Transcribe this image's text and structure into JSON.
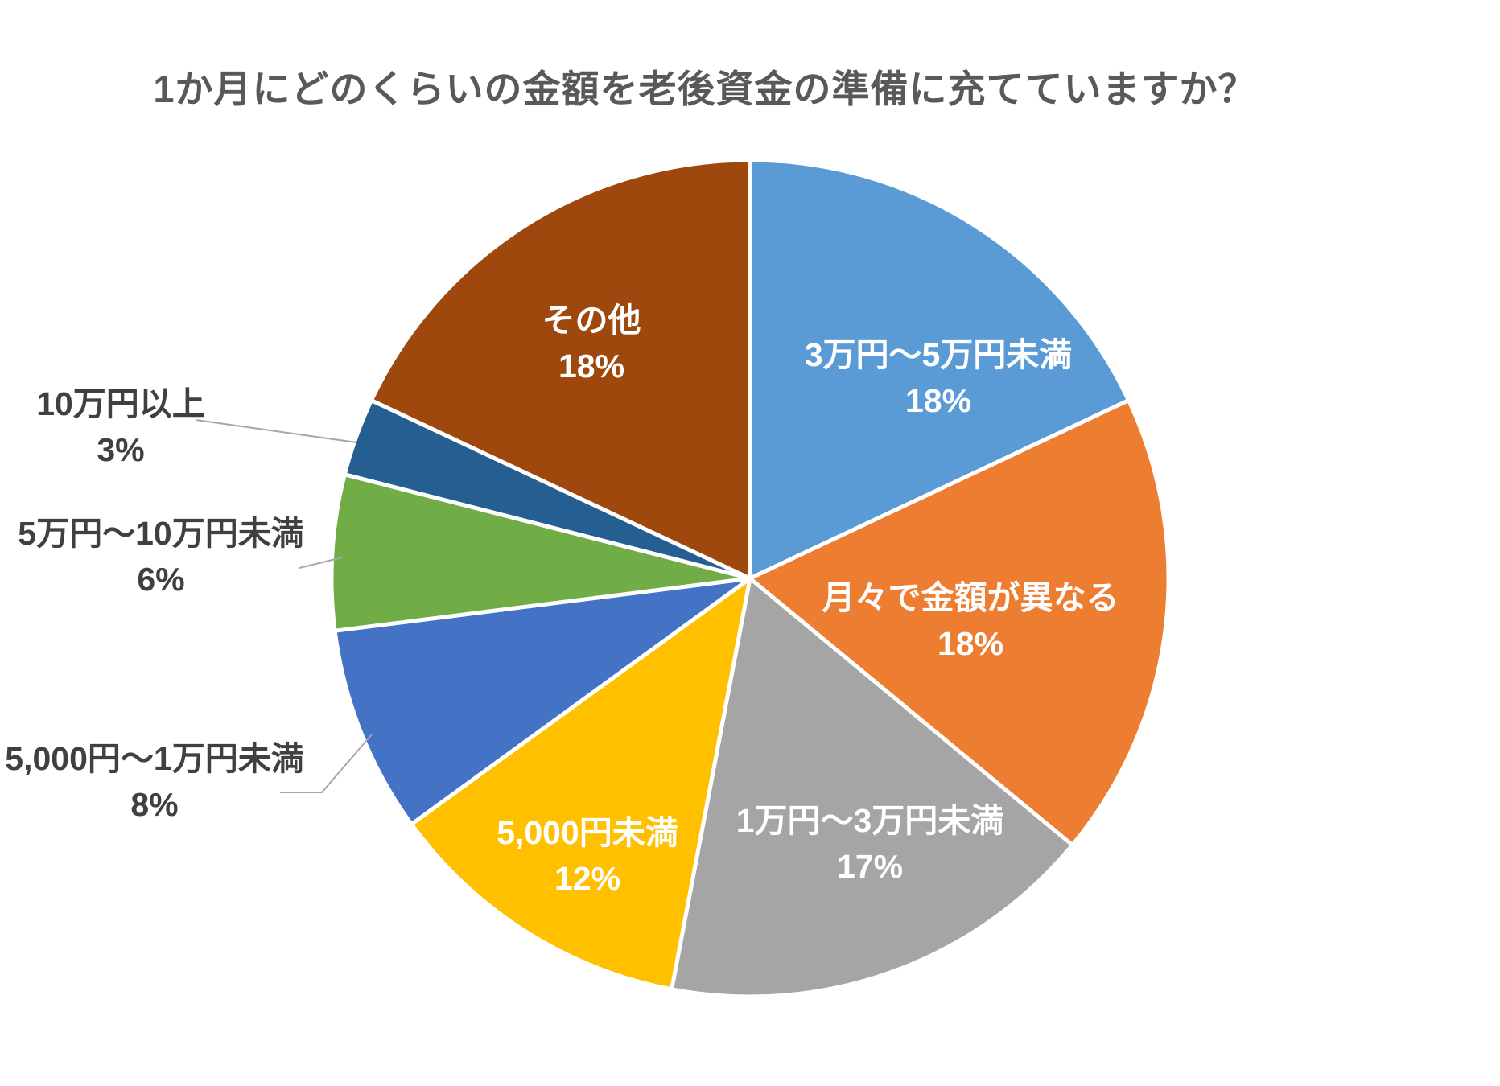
{
  "chart_data": {
    "type": "pie",
    "title": "1か月にどのくらいの金額を老後資金の準備に充てていますか？",
    "total": 100,
    "start_angle_deg": -90,
    "direction": "clockwise",
    "legend": "none",
    "inside_label_color": "#FFFFFF",
    "outside_label_color": "#404040",
    "leader_line_color": "#A6A6A6",
    "slice_border_color": "#FFFFFF",
    "title_color": "#595959",
    "slices": [
      {
        "label": "3万円～5万円未満",
        "pct_label": "18%",
        "value": 18,
        "color": "#5B9BD5",
        "placement": "inside"
      },
      {
        "label": "月々で金額が異なる",
        "pct_label": "18%",
        "value": 18,
        "color": "#ED7D31",
        "placement": "inside"
      },
      {
        "label": "1万円～3万円未満",
        "pct_label": "17%",
        "value": 17,
        "color": "#A5A5A5",
        "placement": "inside"
      },
      {
        "label": "5,000円未満",
        "pct_label": "12%",
        "value": 12,
        "color": "#FFC000",
        "placement": "inside"
      },
      {
        "label": "5,000円～1万円未満",
        "pct_label": "8%",
        "value": 8,
        "color": "#4472C4",
        "placement": "outside"
      },
      {
        "label": "5万円～10万円未満",
        "pct_label": "6%",
        "value": 6,
        "color": "#70AD47",
        "placement": "outside"
      },
      {
        "label": "10万円以上",
        "pct_label": "3%",
        "value": 3,
        "color": "#255E91",
        "placement": "outside"
      },
      {
        "label": "その他",
        "pct_label": "18%",
        "value": 18,
        "color": "#9E480E",
        "placement": "inside"
      }
    ]
  }
}
